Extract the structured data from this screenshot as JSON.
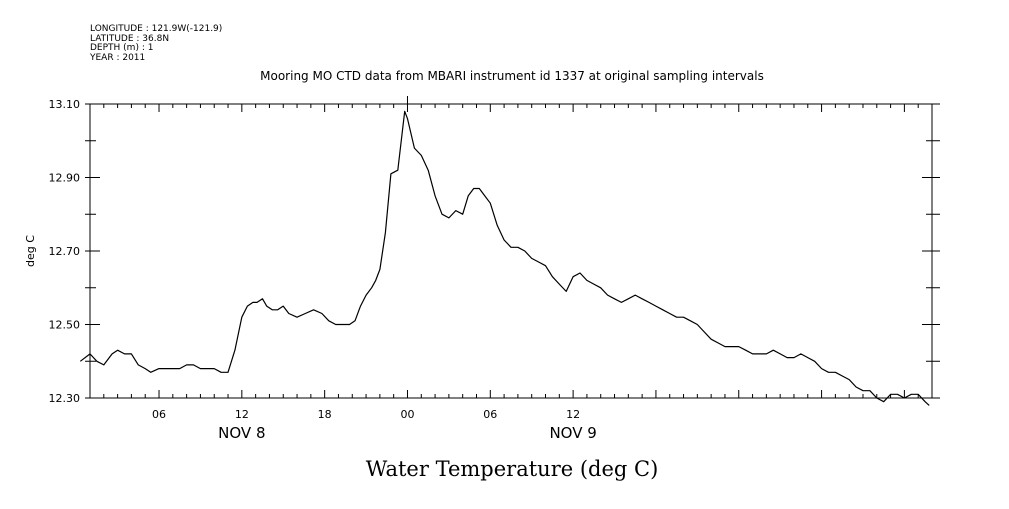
{
  "meta_lines": [
    "LONGITUDE : 121.9W(-121.9)",
    "LATITUDE : 36.8N",
    "DEPTH (m) : 1",
    "YEAR : 2011"
  ],
  "chart_data": {
    "type": "line",
    "title": "Mooring MO CTD data from MBARI instrument id 1337 at original sampling intervals",
    "ylabel": "deg C",
    "xlabel": "Water Temperature (deg C)",
    "ylim": [
      12.3,
      13.1
    ],
    "y_ticks": [
      "12.30",
      "12.50",
      "12.70",
      "12.90",
      "13.10"
    ],
    "x_range_hours": [
      1,
      62
    ],
    "x_tick_labels": [
      {
        "label": "06",
        "hour": 6
      },
      {
        "label": "12",
        "hour": 12
      },
      {
        "label": "18",
        "hour": 18
      },
      {
        "label": "00",
        "hour": 24
      },
      {
        "label": "06",
        "hour": 30
      },
      {
        "label": "12",
        "hour": 36
      }
    ],
    "date_labels": [
      {
        "label": "NOV  8",
        "hour": 12
      },
      {
        "label": "NOV  9",
        "hour": 36
      }
    ],
    "grid": false,
    "series": [
      {
        "x": [
          0.3,
          1.0,
          1.5,
          2.0,
          2.6,
          3.0,
          3.5,
          4.0,
          4.5,
          5.0,
          5.4,
          6.0,
          6.5,
          7.0,
          7.5,
          8.0,
          8.5,
          9.0,
          9.5,
          10.0,
          10.5,
          11.0,
          11.5,
          12.0,
          12.4,
          12.8,
          13.1,
          13.5,
          13.8,
          14.2,
          14.6,
          15.0,
          15.4,
          16.0,
          16.6,
          17.2,
          17.8,
          18.3,
          18.8,
          19.3,
          19.8,
          20.2,
          20.6,
          21.0,
          21.4,
          21.7,
          22.0,
          22.4,
          22.8,
          23.3,
          23.8,
          24.0,
          24.5,
          25.0,
          25.5,
          26.0,
          26.5,
          27.0,
          27.5,
          28.0,
          28.4,
          28.8,
          29.2,
          29.6,
          30.0,
          30.5,
          31.0,
          31.5,
          32.0,
          32.5,
          33.0,
          33.5,
          34.0,
          34.5,
          35.0,
          35.5,
          36.0,
          36.5,
          37.0,
          37.5,
          38.0,
          38.5,
          39.0,
          39.5,
          40.0,
          40.5,
          41.0,
          41.5,
          42.0,
          42.5,
          43.0,
          43.5,
          44.0,
          44.5,
          45.0,
          45.5,
          46.0,
          46.5,
          47.0,
          47.5,
          48.0,
          48.5,
          49.0,
          49.5,
          50.0,
          50.5,
          51.0,
          51.5,
          52.0,
          52.5,
          53.0,
          53.5,
          54.0,
          54.5,
          55.0,
          55.5,
          56.0,
          56.5,
          57.0,
          57.5,
          58.0,
          58.5,
          59.0,
          59.5,
          60.0,
          60.5,
          61.0,
          61.5,
          61.8
        ],
        "y": [
          12.4,
          12.42,
          12.4,
          12.39,
          12.42,
          12.43,
          12.42,
          12.42,
          12.39,
          12.38,
          12.37,
          12.38,
          12.38,
          12.38,
          12.38,
          12.39,
          12.39,
          12.38,
          12.38,
          12.38,
          12.37,
          12.37,
          12.43,
          12.52,
          12.55,
          12.56,
          12.56,
          12.57,
          12.55,
          12.54,
          12.54,
          12.55,
          12.53,
          12.52,
          12.53,
          12.54,
          12.53,
          12.51,
          12.5,
          12.5,
          12.5,
          12.51,
          12.55,
          12.58,
          12.6,
          12.62,
          12.65,
          12.75,
          12.91,
          12.92,
          13.08,
          13.06,
          12.98,
          12.96,
          12.92,
          12.85,
          12.8,
          12.79,
          12.81,
          12.8,
          12.85,
          12.87,
          12.87,
          12.85,
          12.83,
          12.77,
          12.73,
          12.71,
          12.71,
          12.7,
          12.68,
          12.67,
          12.66,
          12.63,
          12.61,
          12.59,
          12.63,
          12.64,
          12.62,
          12.61,
          12.6,
          12.58,
          12.57,
          12.56,
          12.57,
          12.58,
          12.57,
          12.56,
          12.55,
          12.54,
          12.53,
          12.52,
          12.52,
          12.51,
          12.5,
          12.48,
          12.46,
          12.45,
          12.44,
          12.44,
          12.44,
          12.43,
          12.42,
          12.42,
          12.42,
          12.43,
          12.42,
          12.41,
          12.41,
          12.42,
          12.41,
          12.4,
          12.38,
          12.37,
          12.37,
          12.36,
          12.35,
          12.33,
          12.32,
          12.32,
          12.3,
          12.29,
          12.31,
          12.31,
          12.3,
          12.31,
          12.31,
          12.29,
          12.28
        ]
      }
    ]
  }
}
